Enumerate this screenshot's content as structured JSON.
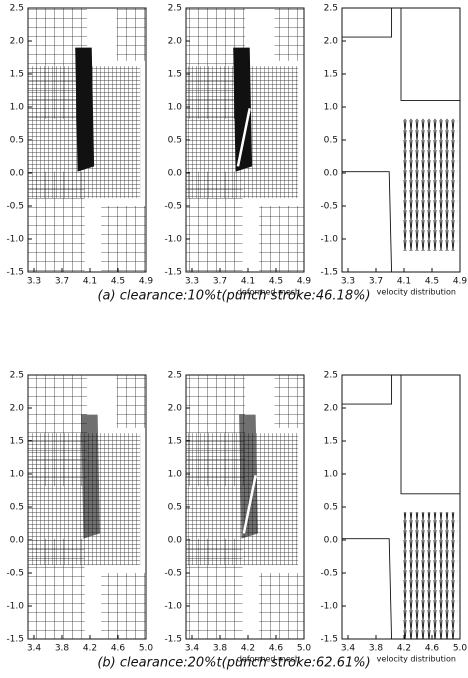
{
  "figures": [
    {
      "panels": [
        {
          "yticks": [
            "2.5",
            "2.0",
            "1.5",
            "1.0",
            "0.5",
            "0.0",
            "-0.5",
            "-1.0",
            "-1.5"
          ],
          "xticks": [
            "3.3",
            "3.7",
            "4.1",
            "4.5",
            "4.9"
          ]
        },
        {
          "yticks": [
            "2.5",
            "2.0",
            "1.5",
            "1.0",
            "0.5",
            "0.0",
            "-0.5",
            "-1.0",
            "-1.5"
          ],
          "xticks": [
            "3.3",
            "3.7",
            "4.1",
            "4.5",
            "4.9"
          ],
          "label": "deformed mesh"
        },
        {
          "yticks": [
            "2.5",
            "2.0",
            "1.5",
            "1.0",
            "0.5",
            "0.0",
            "-0.5",
            "-1.0",
            "-1.5"
          ],
          "xticks": [
            "3.3",
            "3.7",
            "4.1",
            "4.5",
            "4.9"
          ],
          "label": "velocity distribution"
        }
      ],
      "caption": "(a)  clearance:10%t(punch  stroke:46.18%)"
    },
    {
      "panels": [
        {
          "yticks": [
            "2.5",
            "2.0",
            "1.5",
            "1.0",
            "0.5",
            "0.0",
            "-0.5",
            "-1.0",
            "-1.5"
          ],
          "xticks": [
            "3.4",
            "3.8",
            "4.2",
            "4.6",
            "5.0"
          ]
        },
        {
          "yticks": [
            "2.5",
            "2.0",
            "1.5",
            "1.0",
            "0.5",
            "0.0",
            "-0.5",
            "-1.0",
            "-1.5"
          ],
          "xticks": [
            "3.4",
            "3.8",
            "4.2",
            "4.6",
            "5.0"
          ],
          "label": "deformed mesh"
        },
        {
          "yticks": [
            "2.5",
            "2.0",
            "1.5",
            "1.0",
            "0.5",
            "0.0",
            "-0.5",
            "-1.0",
            "-1.5"
          ],
          "xticks": [
            "3.4",
            "3.8",
            "4.2",
            "4.6",
            "5.0"
          ],
          "label": "velocity distribution"
        }
      ],
      "caption": "(b)  clearance:20%t(punch  stroke:62.61%)"
    }
  ]
}
